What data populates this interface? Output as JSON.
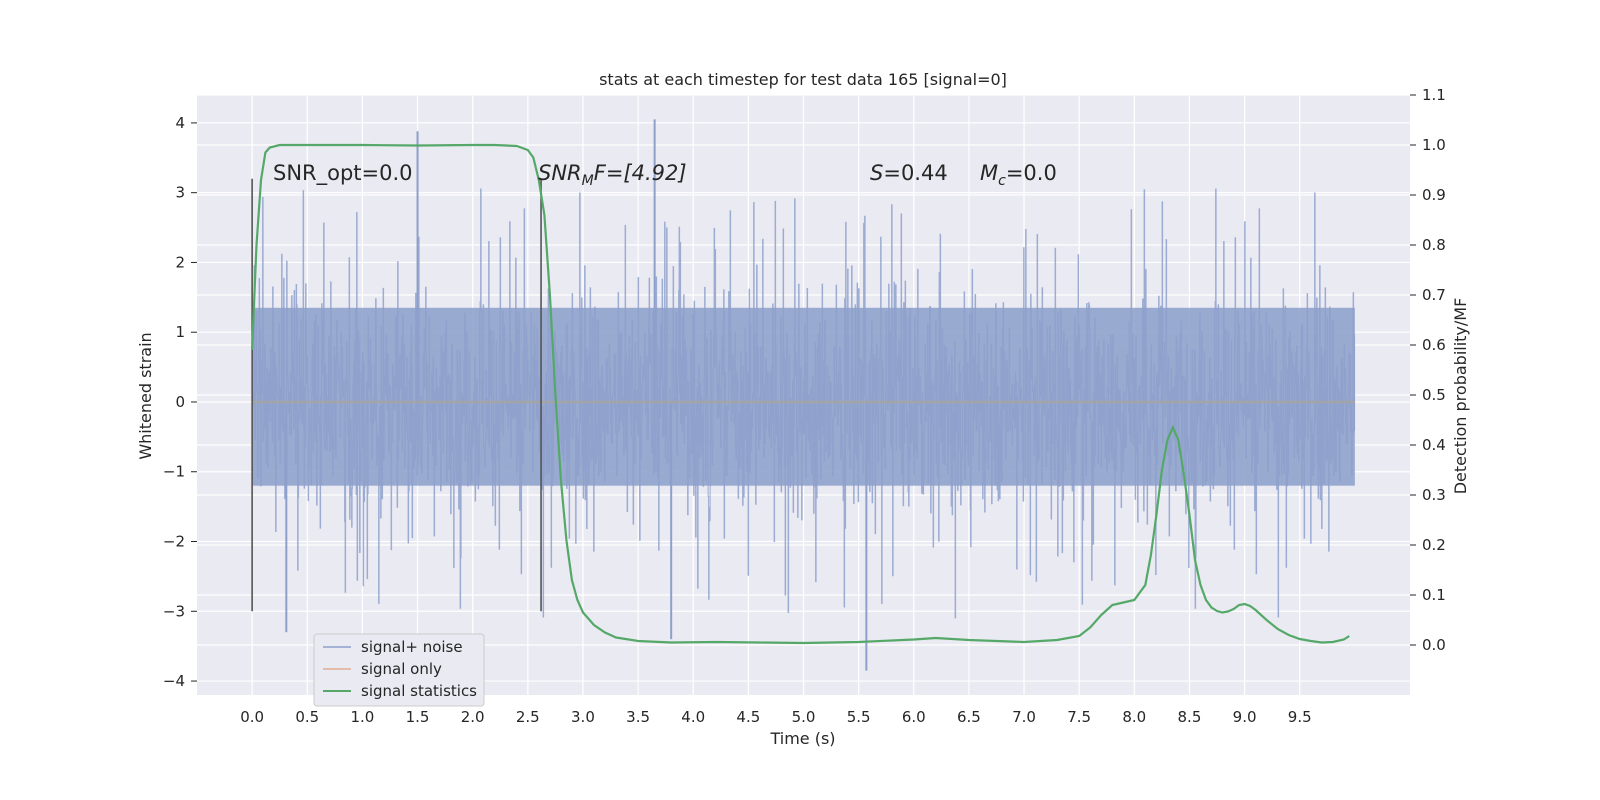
{
  "chart_data": {
    "type": "line",
    "title": "stats at each timestep for test data 165 [signal=0]",
    "xlabel": "Time (s)",
    "ylabel": "Whitened strain",
    "y2label": "Detection probability/MF",
    "xlim": [
      -0.5,
      10.5
    ],
    "ylim": [
      -4.2,
      4.4
    ],
    "y2lim": [
      -0.1,
      1.1
    ],
    "xticks": [
      "0.0",
      "0.5",
      "1.0",
      "1.5",
      "2.0",
      "2.5",
      "3.0",
      "3.5",
      "4.0",
      "4.5",
      "5.0",
      "5.5",
      "6.0",
      "6.5",
      "7.0",
      "7.5",
      "8.0",
      "8.5",
      "9.0",
      "9.5"
    ],
    "yticks": [
      "4",
      "3",
      "2",
      "1",
      "0",
      "−1",
      "−2",
      "−3",
      "−4"
    ],
    "y2ticks": [
      "1.1",
      "1.0",
      "0.9",
      "0.8",
      "0.7",
      "0.6",
      "0.5",
      "0.4",
      "0.3",
      "0.2",
      "0.1",
      "0.0"
    ],
    "grid": true,
    "legend_placement": "lower-left",
    "annotations": {
      "snr_opt": "SNR_opt=0.0",
      "snr_mf_italic": "SNR",
      "snr_mf_sub": "M",
      "snr_mf_rest": "F=[4.92]",
      "s_italic": "S",
      "s_rest": "=0.44",
      "mc_italic": "M",
      "mc_sub": "c",
      "mc_rest": "=0.0"
    },
    "vlines": [
      0.0,
      2.62
    ],
    "series": [
      {
        "name": "signal+ noise",
        "color": "#8da0cb",
        "x_range": [
          0.0,
          10.0
        ],
        "band_core": [
          -1.2,
          1.35
        ],
        "spike_range": [
          -3.3,
          3.9
        ],
        "extreme_peaks": [
          {
            "x": 3.65,
            "y": 4.05
          },
          {
            "x": 1.5,
            "y": 3.88
          },
          {
            "x": 5.57,
            "y": -3.85
          },
          {
            "x": 0.31,
            "y": -3.3
          },
          {
            "x": 3.8,
            "y": -3.4
          }
        ]
      },
      {
        "name": "signal only",
        "color": "#dd8452",
        "x": [
          0.0,
          10.0
        ],
        "y": [
          0.0,
          0.0
        ]
      },
      {
        "name": "signal statistics",
        "color": "#55a868",
        "axis": "right",
        "x": [
          0.0,
          0.04,
          0.08,
          0.12,
          0.16,
          0.25,
          0.5,
          1.0,
          1.5,
          2.0,
          2.2,
          2.4,
          2.5,
          2.55,
          2.6,
          2.65,
          2.7,
          2.75,
          2.8,
          2.85,
          2.9,
          2.95,
          3.0,
          3.1,
          3.2,
          3.3,
          3.5,
          3.8,
          4.2,
          4.6,
          5.0,
          5.5,
          6.0,
          6.2,
          6.5,
          7.0,
          7.3,
          7.5,
          7.6,
          7.7,
          7.8,
          7.9,
          8.0,
          8.1,
          8.15,
          8.2,
          8.25,
          8.3,
          8.35,
          8.4,
          8.45,
          8.5,
          8.55,
          8.6,
          8.65,
          8.7,
          8.75,
          8.8,
          8.85,
          8.9,
          8.95,
          9.0,
          9.05,
          9.1,
          9.2,
          9.3,
          9.4,
          9.5,
          9.6,
          9.7,
          9.8,
          9.9,
          9.95
        ],
        "y": [
          0.59,
          0.8,
          0.93,
          0.985,
          0.995,
          1.0,
          1.0,
          1.0,
          0.999,
          1.0,
          1.0,
          0.998,
          0.99,
          0.975,
          0.93,
          0.86,
          0.7,
          0.5,
          0.33,
          0.21,
          0.13,
          0.09,
          0.065,
          0.04,
          0.025,
          0.015,
          0.008,
          0.005,
          0.006,
          0.005,
          0.004,
          0.006,
          0.011,
          0.014,
          0.01,
          0.006,
          0.01,
          0.018,
          0.035,
          0.06,
          0.08,
          0.085,
          0.09,
          0.12,
          0.18,
          0.26,
          0.35,
          0.41,
          0.435,
          0.41,
          0.34,
          0.26,
          0.17,
          0.12,
          0.09,
          0.075,
          0.068,
          0.065,
          0.067,
          0.072,
          0.08,
          0.082,
          0.078,
          0.07,
          0.05,
          0.032,
          0.02,
          0.012,
          0.008,
          0.005,
          0.006,
          0.011,
          0.018
        ]
      }
    ]
  }
}
